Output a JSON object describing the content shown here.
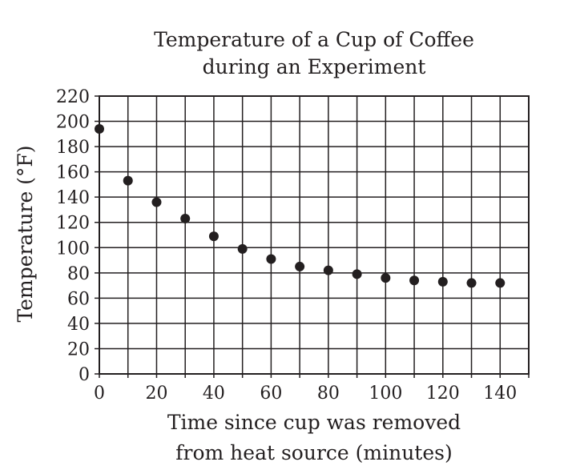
{
  "chart_data": {
    "type": "scatter",
    "title": [
      "Temperature of a Cup of Coffee",
      "during an Experiment"
    ],
    "xlabel": [
      "Time since cup was removed",
      "from heat source (minutes)"
    ],
    "ylabel": "Temperature (°F)",
    "xlim": [
      0,
      150
    ],
    "ylim": [
      0,
      220
    ],
    "x_ticks": [
      0,
      20,
      40,
      60,
      80,
      100,
      120,
      140
    ],
    "y_ticks": [
      0,
      20,
      40,
      60,
      80,
      100,
      120,
      140,
      160,
      180,
      200,
      220
    ],
    "x_grid_step": 10,
    "y_grid_step": 20,
    "grid": true,
    "series": [
      {
        "x": [
          0,
          10,
          20,
          30,
          40,
          50,
          60,
          70,
          80,
          90,
          100,
          110,
          120,
          130,
          140
        ],
        "y": [
          194,
          153,
          136,
          123,
          109,
          99,
          91,
          85,
          82,
          79,
          76,
          74,
          73,
          72,
          72
        ]
      }
    ]
  }
}
